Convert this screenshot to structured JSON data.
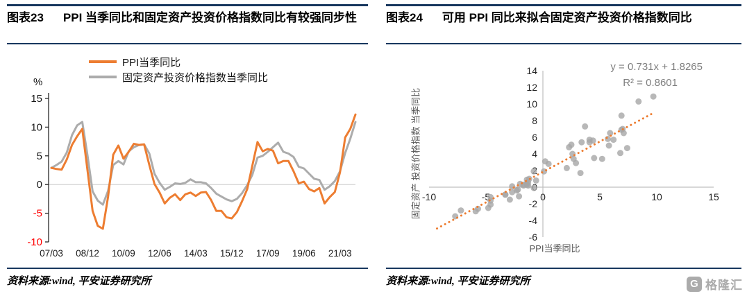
{
  "left": {
    "fig_label": "图表23",
    "title": "PPI 当季同比和固定资产投资价格指数同比有较强同步性",
    "source": "资料来源:wind, 平安证券研究所"
  },
  "right": {
    "fig_label": "图表24",
    "title": "可用 PPI 同比来拟合固定资产投资价格指数同比",
    "source": "资料来源:wind, 平安证券研究所"
  },
  "watermark": {
    "text": "格隆汇",
    "logo_letter": "G"
  },
  "colors": {
    "rule": "#17375E",
    "ppi_orange": "#ED7D31",
    "fai_gray": "#ACACAC",
    "negative_tick": "#FF0000",
    "scatter_point": "#A6A6A6",
    "axis_gray": "#BFBFBF"
  },
  "chart_data": [
    {
      "type": "line",
      "title": "PPI 当季同比和固定资产投资价格指数同比有较强同步性",
      "ylabel": "%",
      "ylim": [
        -10,
        15
      ],
      "yticks": [
        15,
        10,
        5,
        0,
        -5,
        -10
      ],
      "x_tick_labels": [
        "07/03",
        "08/12",
        "10/09",
        "12/06",
        "14/03",
        "15/12",
        "17/09",
        "19/06",
        "21/03"
      ],
      "tick_every": 7,
      "grid": "zero-line-only",
      "legend_position": "top",
      "series": [
        {
          "name": "PPI当季同比",
          "color": "#ED7D31",
          "values": [
            2.9,
            2.7,
            2.6,
            4.4,
            6.9,
            8.4,
            9.7,
            2.5,
            -4.6,
            -7.2,
            -7.7,
            -2.1,
            5.2,
            6.8,
            4.5,
            5.7,
            7.1,
            6.9,
            7.0,
            3.4,
            0.1,
            -1.4,
            -3.3,
            -2.3,
            -1.7,
            -2.7,
            -1.7,
            -1.4,
            -2.0,
            -1.4,
            -1.3,
            -2.7,
            -4.6,
            -4.6,
            -5.7,
            -5.9,
            -4.8,
            -2.9,
            -0.8,
            3.3,
            7.4,
            5.8,
            6.2,
            5.9,
            3.7,
            4.1,
            4.1,
            2.3,
            0.2,
            0.5,
            -0.8,
            -1.2,
            -0.6,
            -3.3,
            -2.2,
            -1.3,
            2.1,
            8.2,
            9.7,
            12.2
          ]
        },
        {
          "name": "固定资产投资价格指数当季同比",
          "color": "#ACACAC",
          "values": [
            2.9,
            3.4,
            4.0,
            5.6,
            8.6,
            10.3,
            10.9,
            5.1,
            -1.2,
            -2.8,
            -3.5,
            -1.1,
            3.4,
            4.1,
            3.5,
            5.8,
            6.5,
            6.9,
            7.0,
            5.4,
            1.9,
            0.3,
            -0.9,
            -0.4,
            0.2,
            0.1,
            0.3,
            0.9,
            0.4,
            0.4,
            0.2,
            -0.6,
            -1.6,
            -2.1,
            -2.6,
            -2.9,
            -2.5,
            -1.5,
            -0.1,
            1.7,
            4.7,
            5.0,
            5.7,
            6.5,
            7.3,
            5.7,
            5.4,
            4.8,
            3.1,
            2.8,
            1.9,
            1.0,
            0.8,
            -0.9,
            -0.3,
            0.6,
            2.3,
            5.5,
            8.0,
            10.9
          ]
        }
      ]
    },
    {
      "type": "scatter",
      "title": "可用 PPI 同比来拟合固定资产投资价格指数同比",
      "xlabel": "PPI当季同比",
      "ylabel": "固定资产 投资价格指数 当季同比",
      "annotations": [
        "y = 0.731x + 1.8265",
        "R² = 0.8601"
      ],
      "xlim": [
        -10,
        15
      ],
      "ylim": [
        -6,
        14
      ],
      "xticks": [
        -10,
        -5,
        0,
        5,
        10,
        15
      ],
      "yticks": [
        14,
        12,
        10,
        8,
        6,
        4,
        2,
        0,
        -2,
        -4,
        -6
      ],
      "point_color": "#A6A6A6",
      "trend": {
        "slope": 0.731,
        "intercept": 1.8265,
        "x_start": -9.3,
        "x_end": 9.8,
        "color": "#ED7D31",
        "style": "dotted"
      },
      "points": [
        [
          2.9,
          2.9
        ],
        [
          2.7,
          3.4
        ],
        [
          2.6,
          4.0
        ],
        [
          4.4,
          5.6
        ],
        [
          6.9,
          8.6
        ],
        [
          8.4,
          10.3
        ],
        [
          9.7,
          10.9
        ],
        [
          2.5,
          5.1
        ],
        [
          -4.6,
          -1.2
        ],
        [
          -7.2,
          -2.8
        ],
        [
          -7.7,
          -3.5
        ],
        [
          -2.1,
          -1.1
        ],
        [
          5.2,
          3.4
        ],
        [
          6.8,
          4.1
        ],
        [
          4.5,
          3.5
        ],
        [
          5.7,
          5.8
        ],
        [
          7.1,
          6.5
        ],
        [
          6.9,
          6.9
        ],
        [
          7.0,
          7.0
        ],
        [
          3.4,
          5.4
        ],
        [
          0.1,
          1.9
        ],
        [
          -1.4,
          0.3
        ],
        [
          -3.3,
          -0.9
        ],
        [
          -2.3,
          -0.4
        ],
        [
          -1.7,
          0.2
        ],
        [
          -2.7,
          0.1
        ],
        [
          -1.7,
          0.3
        ],
        [
          -1.4,
          0.9
        ],
        [
          -2.0,
          0.4
        ],
        [
          -1.4,
          0.4
        ],
        [
          -1.3,
          0.2
        ],
        [
          -2.7,
          -0.6
        ],
        [
          -4.6,
          -1.6
        ],
        [
          -4.6,
          -2.1
        ],
        [
          -5.7,
          -2.6
        ],
        [
          -5.9,
          -2.9
        ],
        [
          -4.8,
          -2.5
        ],
        [
          -2.9,
          -1.5
        ],
        [
          -0.8,
          -0.1
        ],
        [
          3.3,
          1.7
        ],
        [
          7.4,
          4.7
        ],
        [
          5.8,
          5.0
        ],
        [
          6.2,
          5.7
        ],
        [
          5.9,
          6.5
        ],
        [
          3.7,
          7.3
        ],
        [
          4.1,
          5.7
        ],
        [
          4.1,
          5.4
        ],
        [
          2.3,
          4.8
        ],
        [
          0.2,
          3.1
        ],
        [
          0.5,
          2.8
        ],
        [
          -0.8,
          1.9
        ],
        [
          -1.2,
          1.0
        ],
        [
          -0.6,
          0.8
        ],
        [
          -3.3,
          -0.9
        ],
        [
          -2.2,
          -0.3
        ],
        [
          -1.3,
          0.6
        ],
        [
          2.1,
          2.3
        ]
      ]
    }
  ]
}
